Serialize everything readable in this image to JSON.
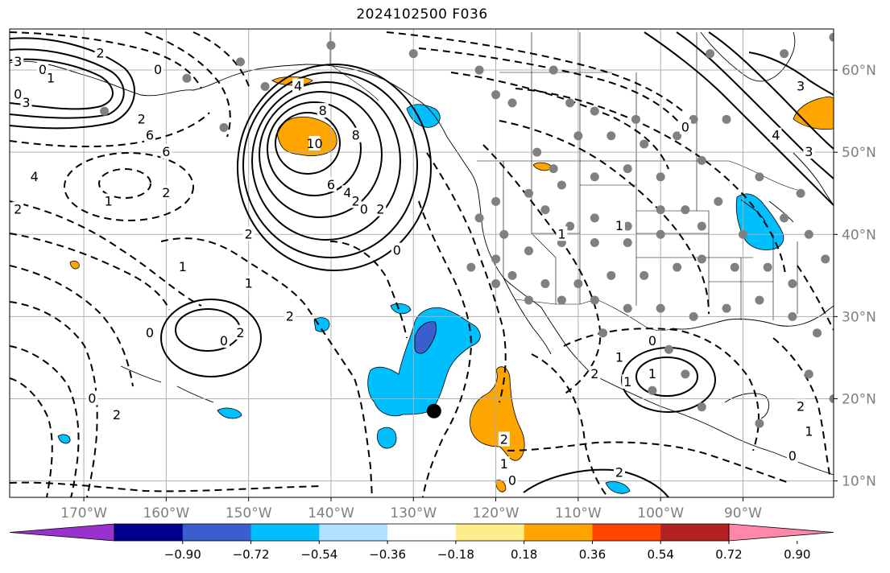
{
  "title": "2024102500 F036",
  "map": {
    "lon_range": [
      -179,
      -79
    ],
    "lat_range": [
      8,
      65
    ],
    "grid_lons": [
      -170,
      -160,
      -150,
      -140,
      -130,
      -120,
      -110,
      -100,
      -90
    ],
    "grid_lats": [
      10,
      20,
      30,
      40,
      50,
      60
    ],
    "lon_tick_labels": [
      "170°W",
      "160°W",
      "150°W",
      "140°W",
      "130°W",
      "120°W",
      "110°W",
      "100°W",
      "90°W"
    ],
    "lat_tick_labels": [
      "10°N",
      "20°N",
      "30°N",
      "40°N",
      "50°N",
      "60°N"
    ],
    "marker": {
      "lon": -127.5,
      "lat": 18.5,
      "color": "#000000"
    },
    "station_color": "#808080",
    "grid_color": "#b0b0b0"
  },
  "colorbar": {
    "colors": [
      "#9932cc",
      "#00008b",
      "#3a5fcd",
      "#00bfff",
      "#b0e2ff",
      "#ffffff",
      "#ffec8b",
      "#ffa500",
      "#ff4500",
      "#b22222",
      "#ff88aa"
    ],
    "labels": [
      "−0.90",
      "−0.72",
      "−0.54",
      "−0.36",
      "−0.18",
      "0.18",
      "0.36",
      "0.54",
      "0.72",
      "0.90"
    ]
  },
  "contour_labels": [
    "3",
    "2",
    "0",
    "1",
    "6",
    "4",
    "2",
    "0",
    "2",
    "3",
    "0",
    "2",
    "1",
    "1",
    "2",
    "8",
    "10",
    "8",
    "6",
    "4",
    "2",
    "0",
    "2",
    "2",
    "1",
    "2",
    "0",
    "0",
    "0",
    "2",
    "0",
    "1",
    "1",
    "2",
    "2",
    "1",
    "0",
    "1",
    "0",
    "3",
    "4",
    "3",
    "0",
    "1",
    "1",
    "2",
    "2",
    "1",
    "0",
    "6",
    "4"
  ]
}
